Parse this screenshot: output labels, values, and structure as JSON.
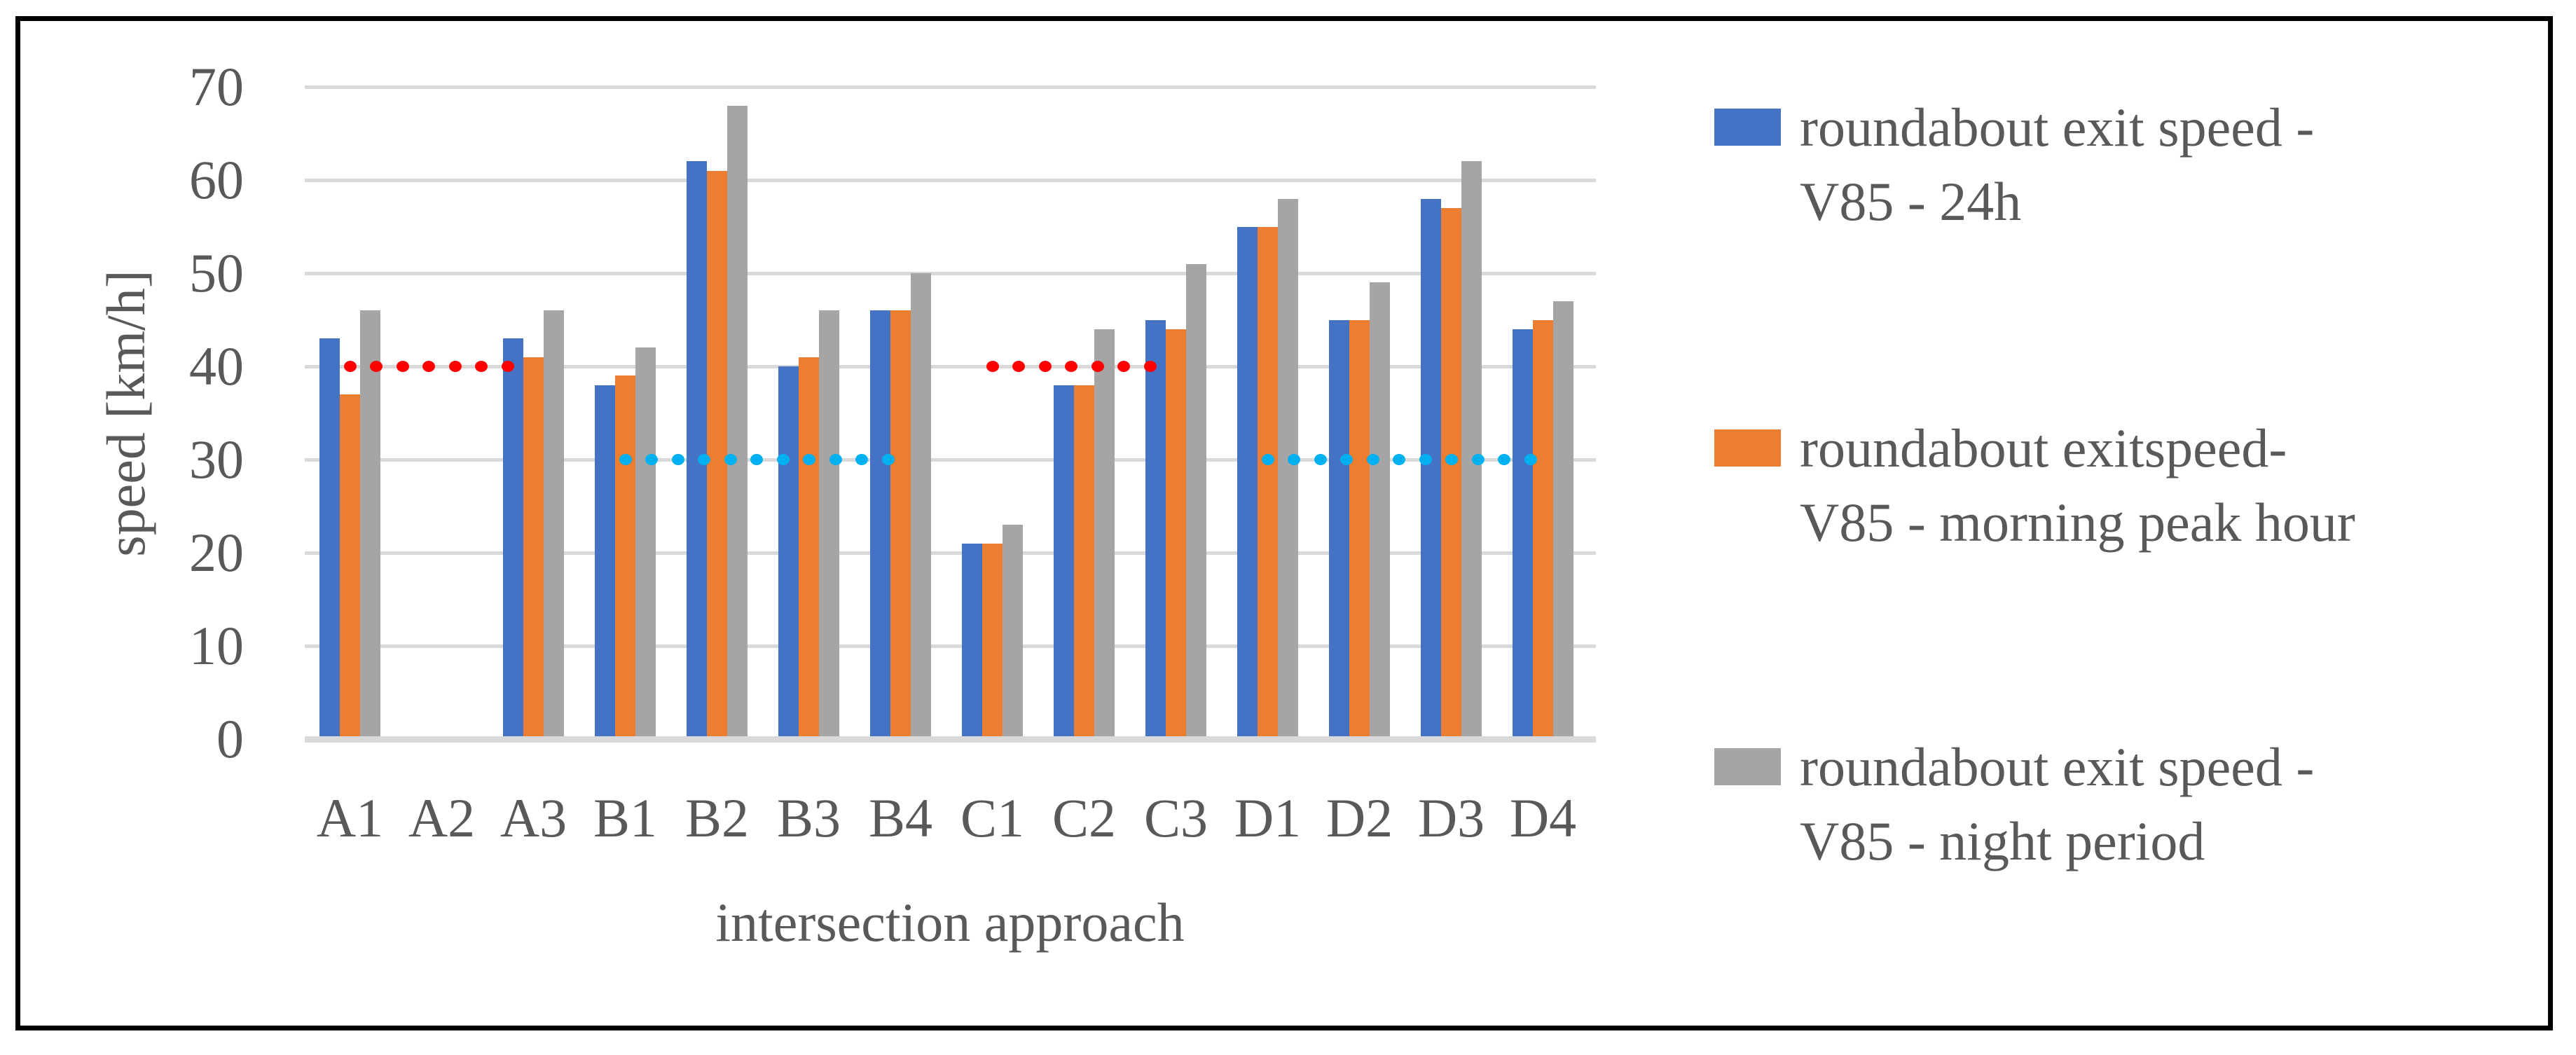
{
  "chart_data": {
    "type": "bar",
    "title": "",
    "xlabel": "intersection approach",
    "ylabel": "speed [km/h]",
    "ylim": [
      0,
      70
    ],
    "yticks": [
      0,
      10,
      20,
      30,
      40,
      50,
      60,
      70
    ],
    "grid": true,
    "legend_position": "right",
    "categories": [
      "A1",
      "A2",
      "A3",
      "B1",
      "B2",
      "B3",
      "B4",
      "C1",
      "C2",
      "C3",
      "D1",
      "D2",
      "D3",
      "D4"
    ],
    "series": [
      {
        "name": "roundabout exit speed - V85 - 24h",
        "color": "#4472C4",
        "values": [
          43,
          null,
          43,
          38,
          62,
          40,
          46,
          21,
          38,
          45,
          55,
          45,
          58,
          44
        ]
      },
      {
        "name": "roundabout exitspeed- V85 - morning peak hour",
        "color": "#ED7D31",
        "values": [
          37,
          null,
          41,
          39,
          61,
          41,
          46,
          21,
          38,
          44,
          55,
          45,
          57,
          45
        ]
      },
      {
        "name": "roundabout exit speed - V85 - night period",
        "color": "#A5A5A5",
        "values": [
          46,
          null,
          46,
          42,
          68,
          46,
          50,
          23,
          44,
          51,
          58,
          49,
          62,
          47
        ]
      }
    ],
    "reference_lines": [
      {
        "value": 40,
        "color": "#FF0000",
        "style": "dotted",
        "from": "A1",
        "to": "A3"
      },
      {
        "value": 30,
        "color": "#00B0F0",
        "style": "dotted",
        "from": "B1",
        "to": "B4"
      },
      {
        "value": 40,
        "color": "#FF0000",
        "style": "dotted",
        "from": "C1",
        "to": "C3"
      },
      {
        "value": 30,
        "color": "#00B0F0",
        "style": "dotted",
        "from": "D1",
        "to": "D4"
      }
    ]
  },
  "legend": {
    "items": [
      {
        "lines": [
          "roundabout exit speed -",
          "V85 - 24h"
        ],
        "color": "#4472C4"
      },
      {
        "lines": [
          "roundabout exitspeed-",
          "V85 - morning peak hour"
        ],
        "color": "#ED7D31"
      },
      {
        "lines": [
          "roundabout exit speed -",
          "V85 - night period"
        ],
        "color": "#A5A5A5"
      }
    ]
  },
  "colors": {
    "grid": "#D9D9D9",
    "text": "#595959",
    "border": "#000000",
    "background": "#FFFFFF"
  }
}
